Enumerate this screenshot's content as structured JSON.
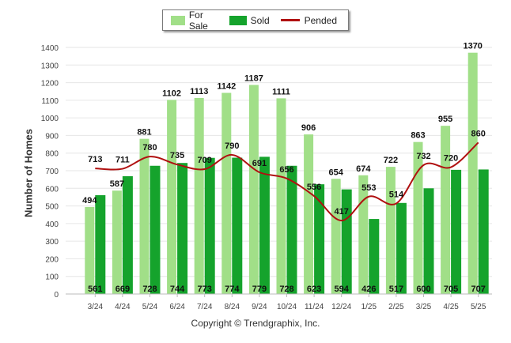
{
  "copyright": "Copyright © Trendgraphix, Inc.",
  "colors": {
    "for_sale": "#a1df88",
    "sold": "#15a32c",
    "pended": "#b01010"
  },
  "chart_data": {
    "type": "bar",
    "categories": [
      "3/24",
      "4/24",
      "5/24",
      "6/24",
      "7/24",
      "8/24",
      "9/24",
      "10/24",
      "11/24",
      "12/24",
      "1/25",
      "2/25",
      "3/25",
      "4/25",
      "5/25"
    ],
    "series": [
      {
        "name": "For Sale",
        "type": "bar",
        "values": [
          494,
          587,
          881,
          1102,
          1113,
          1142,
          1187,
          1111,
          906,
          654,
          674,
          722,
          863,
          955,
          1370
        ]
      },
      {
        "name": "Sold",
        "type": "bar",
        "values": [
          561,
          669,
          728,
          744,
          773,
          774,
          779,
          728,
          623,
          594,
          426,
          517,
          600,
          705,
          707
        ]
      },
      {
        "name": "Pended",
        "type": "line",
        "values": [
          713,
          711,
          780,
          735,
          709,
          790,
          691,
          656,
          556,
          417,
          553,
          514,
          732,
          720,
          860
        ]
      }
    ],
    "xlabel": "",
    "ylabel": "Number of Homes",
    "ylim": [
      0,
      1400
    ],
    "yticks": [
      0,
      100,
      200,
      300,
      400,
      500,
      600,
      700,
      800,
      900,
      1000,
      1100,
      1200,
      1300,
      1400
    ],
    "grid": true,
    "legend": "top-center"
  }
}
